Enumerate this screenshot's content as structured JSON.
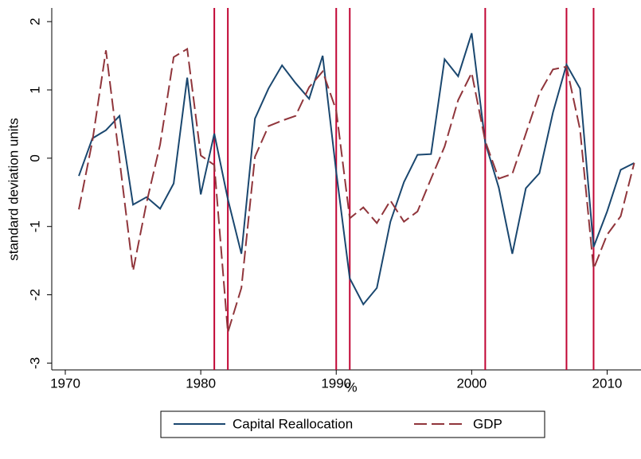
{
  "chart_data": {
    "type": "line",
    "x": [
      1971,
      1972,
      1973,
      1974,
      1975,
      1976,
      1977,
      1978,
      1979,
      1980,
      1981,
      1982,
      1983,
      1984,
      1985,
      1986,
      1987,
      1988,
      1989,
      1990,
      1991,
      1992,
      1993,
      1994,
      1995,
      1996,
      1997,
      1998,
      1999,
      2000,
      2001,
      2002,
      2003,
      2004,
      2005,
      2006,
      2007,
      2008,
      2009,
      2010,
      2011,
      2012
    ],
    "series": [
      {
        "name": "Capital Reallocation",
        "color": "#1a476f",
        "dash": "solid",
        "values": [
          -0.26,
          0.29,
          0.41,
          0.62,
          -0.68,
          -0.57,
          -0.74,
          -0.37,
          1.18,
          -0.53,
          0.36,
          -0.6,
          -1.4,
          0.58,
          1.02,
          1.36,
          1.1,
          0.87,
          1.5,
          -0.2,
          -1.76,
          -2.14,
          -1.9,
          -0.93,
          -0.35,
          0.05,
          0.06,
          1.45,
          1.2,
          1.83,
          0.23,
          -0.43,
          -1.4,
          -0.44,
          -0.22,
          0.67,
          1.37,
          1.02,
          -1.3,
          -0.78,
          -0.17,
          -0.07
        ]
      },
      {
        "name": "GDP",
        "color": "#90353b",
        "dash": "dashed",
        "values": [
          -0.75,
          0.25,
          1.58,
          -0.02,
          -1.65,
          -0.65,
          0.2,
          1.48,
          1.6,
          0.04,
          -0.1,
          -2.55,
          -1.9,
          0.02,
          0.47,
          0.55,
          0.62,
          1.04,
          1.27,
          0.7,
          -0.88,
          -0.72,
          -0.95,
          -0.62,
          -0.93,
          -0.78,
          -0.3,
          0.17,
          0.85,
          1.25,
          0.25,
          -0.3,
          -0.23,
          0.36,
          0.95,
          1.3,
          1.34,
          0.42,
          -1.62,
          -1.12,
          -0.85,
          -0.07
        ]
      }
    ],
    "recession_lines": [
      1981,
      1982,
      1990,
      1991,
      2001,
      2007,
      2009
    ],
    "recession_color": "#c10534",
    "xlabel": "%",
    "ylabel": "standard deviation units",
    "xlim": [
      1969,
      2012.5
    ],
    "ylim": [
      -3.1,
      2.2
    ],
    "xticks": [
      1970,
      1980,
      1990,
      2000,
      2010
    ],
    "yticks": [
      -3,
      -2,
      -1,
      0,
      1,
      2
    ]
  }
}
